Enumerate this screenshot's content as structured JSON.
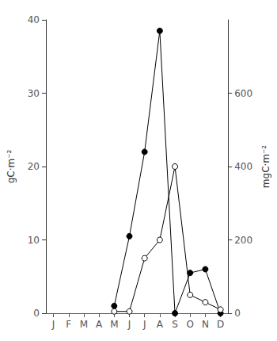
{
  "chart_data": {
    "type": "line",
    "categories": [
      "J",
      "F",
      "M",
      "A",
      "M",
      "J",
      "J",
      "A",
      "S",
      "O",
      "N",
      "D"
    ],
    "series": [
      {
        "color": "#000000",
        "marker": "filled_circle",
        "axis": "y",
        "values": [
          null,
          null,
          null,
          null,
          1.0,
          10.5,
          22.0,
          38.5,
          0.0,
          5.5,
          6.0,
          0.0
        ]
      },
      {
        "color": "#000000",
        "marker": "open_circle",
        "axis": "y2",
        "values": [
          null,
          null,
          null,
          null,
          5,
          5,
          150,
          200,
          400,
          50,
          30,
          10
        ]
      }
    ],
    "ylabel": "gC·m⁻²",
    "y2label": "mgC·m⁻²",
    "ylim": [
      0,
      40
    ],
    "yticks": [
      0,
      10,
      20,
      30,
      40
    ],
    "y2lim": [
      0,
      800
    ],
    "y2ticks": [
      0,
      200,
      400,
      600
    ],
    "grid": false
  }
}
